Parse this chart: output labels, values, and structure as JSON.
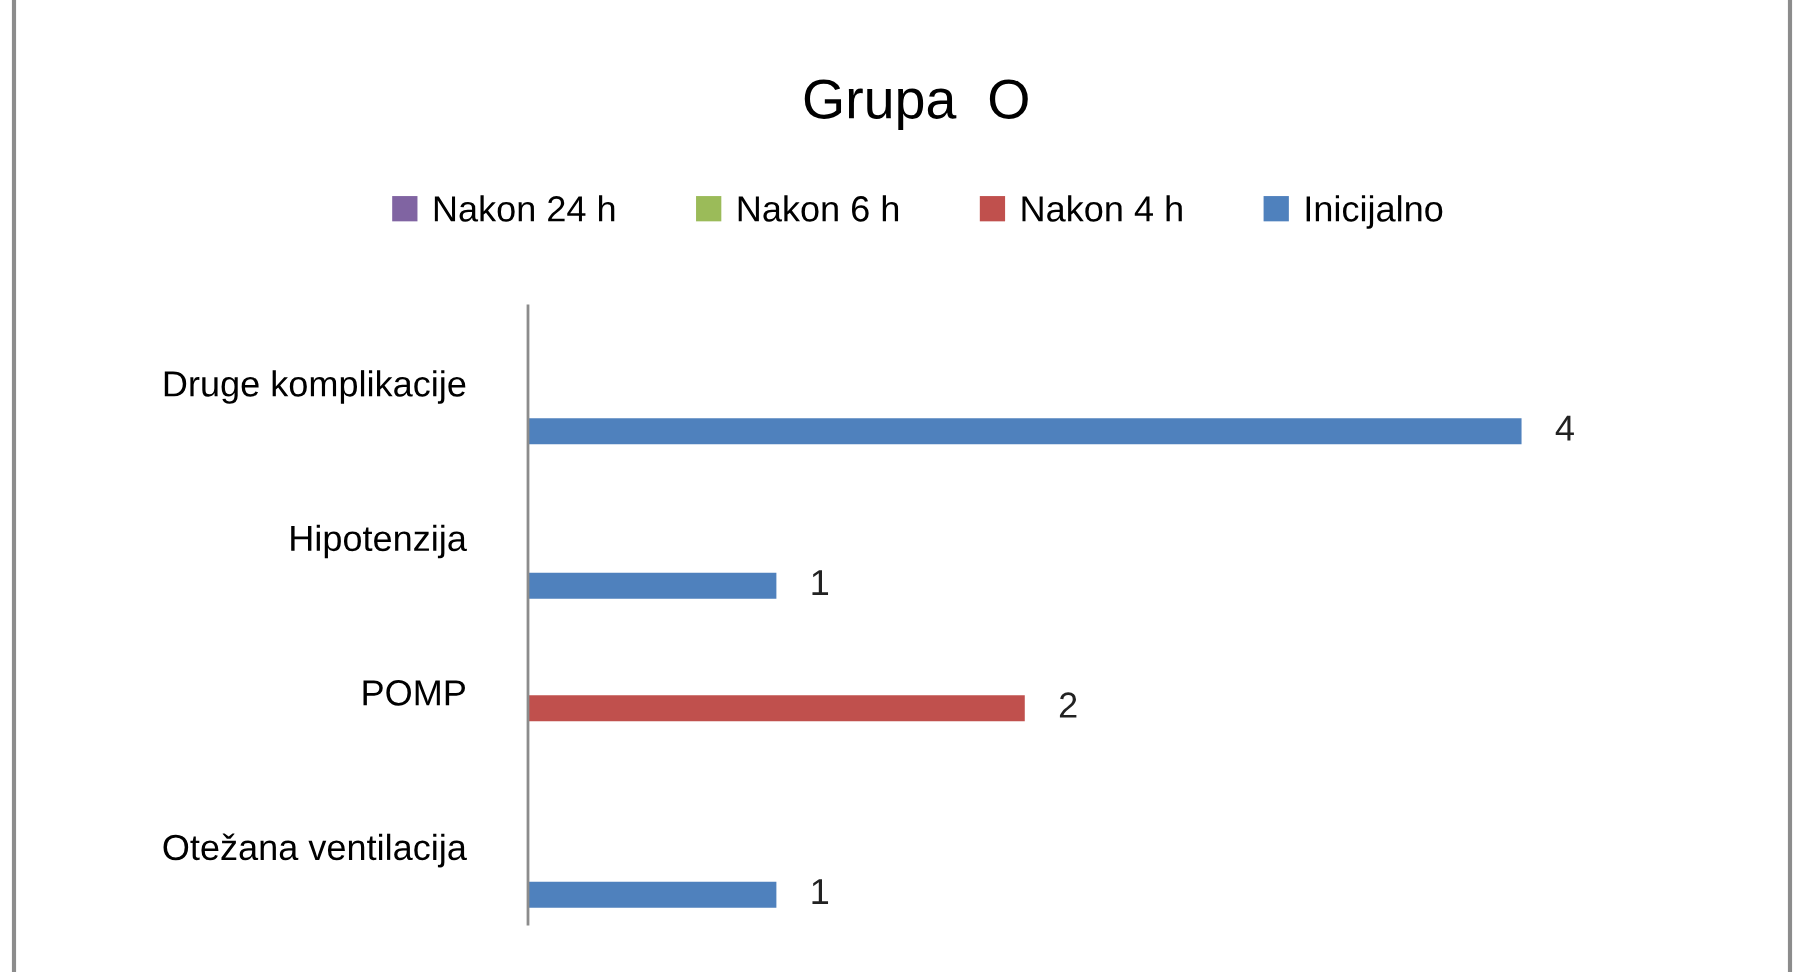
{
  "chart_data": {
    "type": "bar",
    "orientation": "horizontal",
    "title": "Grupa  O",
    "categories": [
      "Druge komplikacije",
      "Hipotenzija",
      "POMP",
      "Otežana ventilacija"
    ],
    "series": [
      {
        "name": "Nakon 24 h",
        "color": "#8064a2",
        "values": [
          null,
          null,
          null,
          null
        ]
      },
      {
        "name": "Nakon 6 h",
        "color": "#9bbb59",
        "values": [
          null,
          null,
          null,
          null
        ]
      },
      {
        "name": "Nakon 4 h",
        "color": "#c0504d",
        "values": [
          null,
          null,
          2,
          null
        ]
      },
      {
        "name": "Inicijalno",
        "color": "#4f81bd",
        "values": [
          4,
          1,
          null,
          1
        ]
      }
    ],
    "data_labels": true,
    "legend": "top",
    "tick_labels": "y",
    "grid": false
  }
}
